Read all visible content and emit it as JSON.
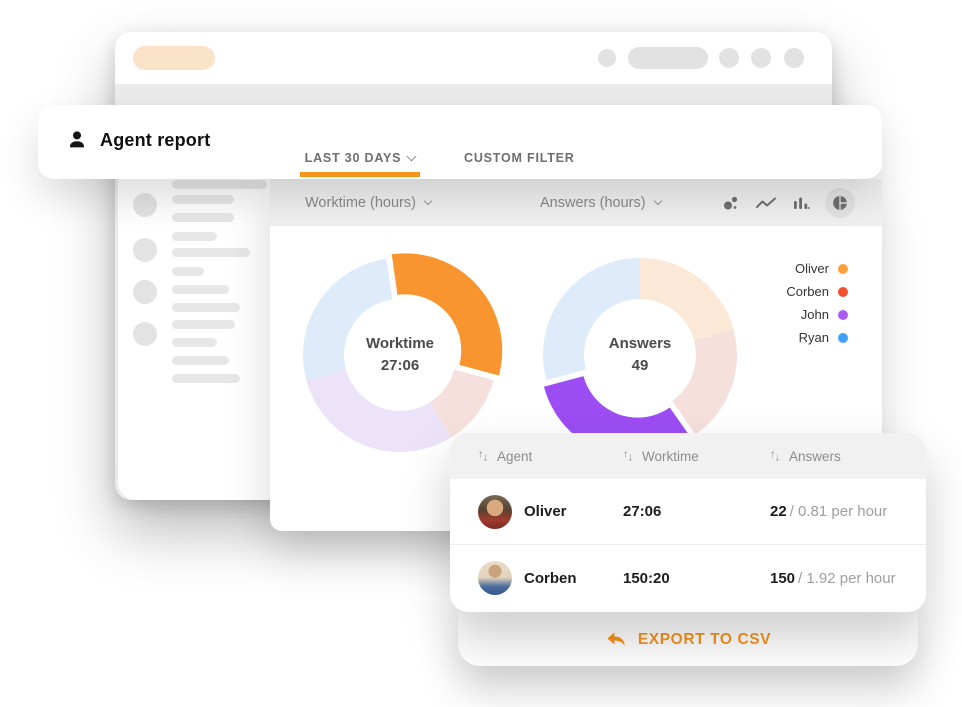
{
  "header": {
    "title": "Agent report",
    "tabs": [
      {
        "label": "LAST 30 DAYS",
        "active": true
      },
      {
        "label": "CUSTOM FILTER",
        "active": false
      }
    ]
  },
  "toolbar": {
    "dropdowns": [
      {
        "label": "Worktime (hours)"
      },
      {
        "label": "Answers (hours)"
      }
    ],
    "chart_type_icons": [
      "bubble-chart-icon",
      "line-chart-icon",
      "bar-chart-icon",
      "pie-chart-icon"
    ],
    "active_chart_type": "pie-chart-icon"
  },
  "legend": [
    {
      "name": "Oliver",
      "color": "#F9A03C"
    },
    {
      "name": "Corben",
      "color": "#F5502C"
    },
    {
      "name": "John",
      "color": "#AB5BF5"
    },
    {
      "name": "Ryan",
      "color": "#41A0F8"
    }
  ],
  "chart_data": [
    {
      "type": "pie",
      "title": "Worktime donut",
      "center_label": "Worktime",
      "center_value": "27:06",
      "segments": [
        {
          "name": "Oliver",
          "start": -8,
          "end": 105,
          "color": "#F8952E",
          "highlighted": true
        },
        {
          "name": "Corben",
          "start": 105,
          "end": 148,
          "color": "#F6E0DD",
          "highlighted": false
        },
        {
          "name": "John",
          "start": 148,
          "end": 255,
          "color": "#EDE3F9",
          "highlighted": false
        },
        {
          "name": "Ryan",
          "start": 255,
          "end": 352,
          "color": "#DDEBFA",
          "highlighted": false
        }
      ]
    },
    {
      "type": "pie",
      "title": "Answers donut",
      "center_label": "Answers",
      "center_value": "49",
      "segments": [
        {
          "name": "Oliver",
          "start": 0,
          "end": 75,
          "color": "#FBE8D7",
          "highlighted": false
        },
        {
          "name": "Corben",
          "start": 75,
          "end": 145,
          "color": "#F6E0DD",
          "highlighted": false
        },
        {
          "name": "John",
          "start": 145,
          "end": 255,
          "color": "#9C4DF4",
          "highlighted": true
        },
        {
          "name": "Ryan",
          "start": 255,
          "end": 360,
          "color": "#DDEBFA",
          "highlighted": false
        }
      ]
    }
  ],
  "table": {
    "columns": [
      "Agent",
      "Worktime",
      "Answers"
    ],
    "rows": [
      {
        "agent": "Oliver",
        "worktime": "27:06",
        "answers": "22",
        "answers_rate": "/ 0.81 per hour"
      },
      {
        "agent": "Corben",
        "worktime": "150:20",
        "answers": "150",
        "answers_rate": "/ 1.92 per hour"
      }
    ]
  },
  "export": {
    "label": "EXPORT TO CSV"
  },
  "colors": {
    "accent": "#F7941E",
    "toolbar_bg": "#F0F0F0",
    "table_header_bg": "#F1F1F1"
  }
}
